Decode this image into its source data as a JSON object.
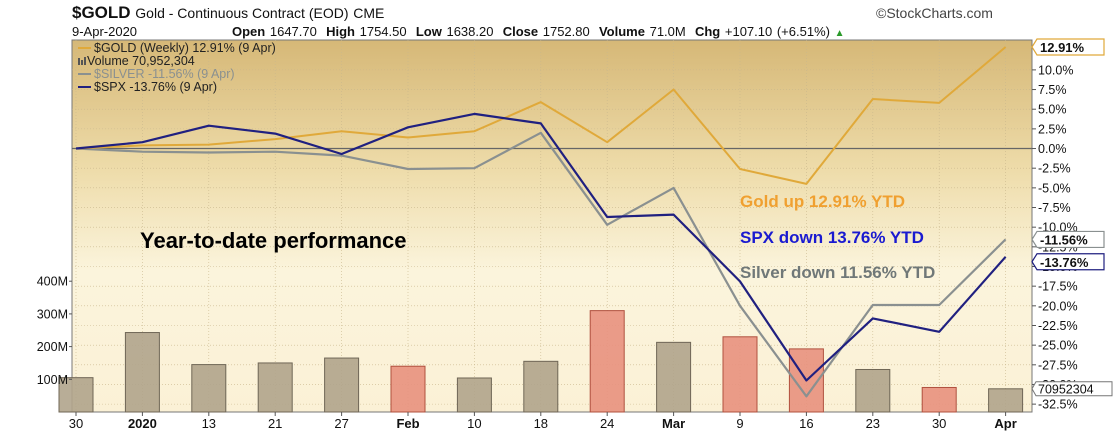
{
  "header": {
    "symbol": "$GOLD",
    "description": "Gold - Continuous Contract (EOD)",
    "exchange": "CME",
    "brand": "©StockCharts.com",
    "date": "9-Apr-2020",
    "open_label": "Open",
    "open_value": "1647.70",
    "high_label": "High",
    "high_value": "1754.50",
    "low_label": "Low",
    "low_value": "1638.20",
    "close_label": "Close",
    "close_value": "1752.80",
    "volume_label": "Volume",
    "volume_value": "71.0M",
    "chg_label": "Chg",
    "chg_value": "+107.10 (+6.51%)",
    "chg_arrow": "▲"
  },
  "legend": [
    {
      "text": "$GOLD (Weekly) 12.91% (9 Apr)",
      "color": "#e0a93a",
      "muted": false
    },
    {
      "text": "Volume 70,952,304",
      "color": "#555555",
      "muted": false
    },
    {
      "text": "$SILVER -11.56% (9 Apr)",
      "color": "#8a9090",
      "muted": true
    },
    {
      "text": "$SPX -13.76% (9 Apr)",
      "color": "#202080",
      "muted": false
    }
  ],
  "annotations": [
    {
      "text": "Year-to-date performance",
      "color": "#000000"
    },
    {
      "text": "Gold up 12.91% YTD",
      "color": "#f0a030"
    },
    {
      "text": "SPX down 13.76% YTD",
      "color": "#1a1ad0"
    },
    {
      "text": "Silver down 11.56% YTD",
      "color": "#707878"
    }
  ],
  "chart_data": {
    "type": "line",
    "x_tick_labels": [
      "30",
      "2020",
      "13",
      "21",
      "27",
      "Feb",
      "10",
      "18",
      "24",
      "Mar",
      "9",
      "16",
      "23",
      "30",
      "Apr"
    ],
    "y_tick_labels": [
      "10.0%",
      "7.5%",
      "5.0%",
      "2.5%",
      "0.0%",
      "-2.5%",
      "-5.0%",
      "-7.5%",
      "-10.0%",
      "-12.5%",
      "-15.0%",
      "-17.5%",
      "-20.0%",
      "-22.5%",
      "-25.0%",
      "-27.5%",
      "-30.0%",
      "-32.5%"
    ],
    "ylim": [
      -33.5,
      13.8
    ],
    "series": [
      {
        "name": "$GOLD",
        "color": "#e0a93a",
        "values": [
          0.0,
          0.4,
          0.5,
          1.2,
          2.2,
          1.4,
          2.2,
          5.9,
          0.8,
          7.5,
          -2.6,
          -4.5,
          6.3,
          5.8,
          12.91
        ]
      },
      {
        "name": "$SILVER",
        "color": "#8a9090",
        "values": [
          0.0,
          -0.4,
          -0.5,
          -0.4,
          -0.9,
          -2.6,
          -2.5,
          2.0,
          -9.7,
          -5.0,
          -20.0,
          -31.5,
          -19.9,
          -19.9,
          -11.56
        ]
      },
      {
        "name": "$SPX",
        "color": "#202080",
        "values": [
          0.0,
          0.8,
          2.9,
          1.9,
          -0.7,
          2.7,
          4.4,
          3.2,
          -8.7,
          -8.4,
          -16.9,
          -29.5,
          -21.6,
          -23.3,
          -13.76
        ]
      }
    ],
    "end_labels": [
      "12.91%",
      "-11.56%",
      "-13.76%"
    ],
    "volume": {
      "unit": "M",
      "tick_labels": [
        "400M",
        "300M",
        "200M",
        "100M"
      ],
      "values": [
        105,
        243,
        145,
        150,
        165,
        140,
        104,
        155,
        310,
        213,
        230,
        193,
        130,
        75,
        70.95
      ],
      "down": [
        false,
        false,
        false,
        false,
        false,
        true,
        false,
        false,
        true,
        false,
        true,
        true,
        false,
        true,
        false
      ],
      "last_label": "70952304",
      "max": 405
    }
  }
}
